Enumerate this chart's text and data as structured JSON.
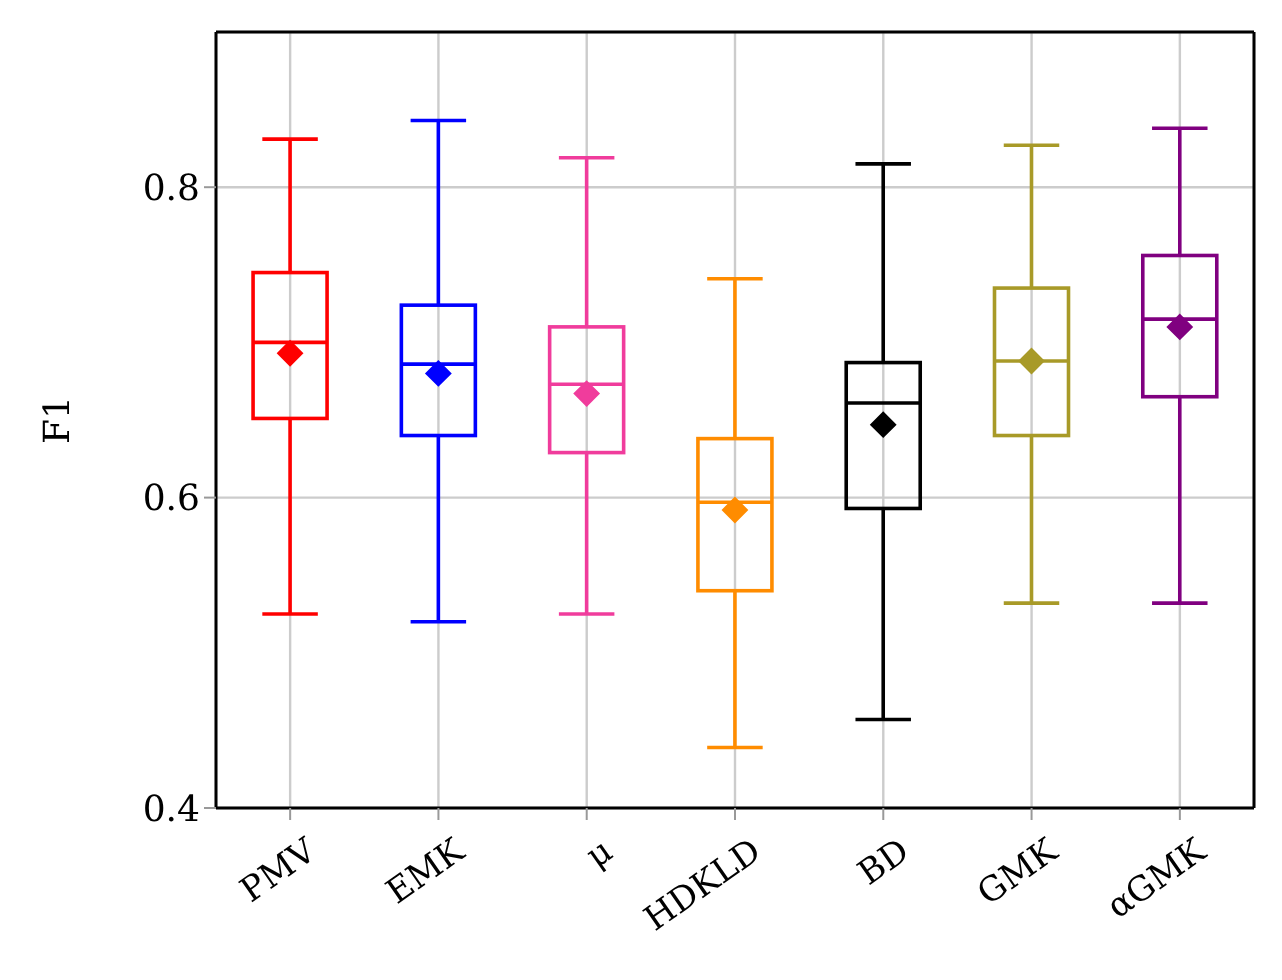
{
  "chart_data": {
    "type": "box",
    "ylabel": "F1",
    "categories": [
      "PMV",
      "EMK",
      "μ",
      "HDKLD",
      "BD",
      "GMK",
      "αGMK"
    ],
    "colors": [
      "#ff0000",
      "#0000ff",
      "#f03c9c",
      "#ff8c00",
      "#000000",
      "#a89a28",
      "#800080"
    ],
    "boxes": [
      {
        "low": 0.525,
        "q1": 0.651,
        "median": 0.7,
        "q3": 0.745,
        "high": 0.831,
        "mean": 0.693
      },
      {
        "low": 0.52,
        "q1": 0.64,
        "median": 0.686,
        "q3": 0.724,
        "high": 0.843,
        "mean": 0.68
      },
      {
        "low": 0.525,
        "q1": 0.629,
        "median": 0.673,
        "q3": 0.71,
        "high": 0.819,
        "mean": 0.667
      },
      {
        "low": 0.439,
        "q1": 0.54,
        "median": 0.597,
        "q3": 0.638,
        "high": 0.741,
        "mean": 0.592
      },
      {
        "low": 0.457,
        "q1": 0.593,
        "median": 0.661,
        "q3": 0.687,
        "high": 0.815,
        "mean": 0.647
      },
      {
        "low": 0.532,
        "q1": 0.64,
        "median": 0.688,
        "q3": 0.735,
        "high": 0.827,
        "mean": 0.688
      },
      {
        "low": 0.532,
        "q1": 0.665,
        "median": 0.715,
        "q3": 0.756,
        "high": 0.838,
        "mean": 0.71
      }
    ],
    "ylim": [
      0.4,
      0.9
    ],
    "yticks": [
      0.4,
      0.6,
      0.8
    ],
    "grid": true,
    "marker": "diamond"
  }
}
